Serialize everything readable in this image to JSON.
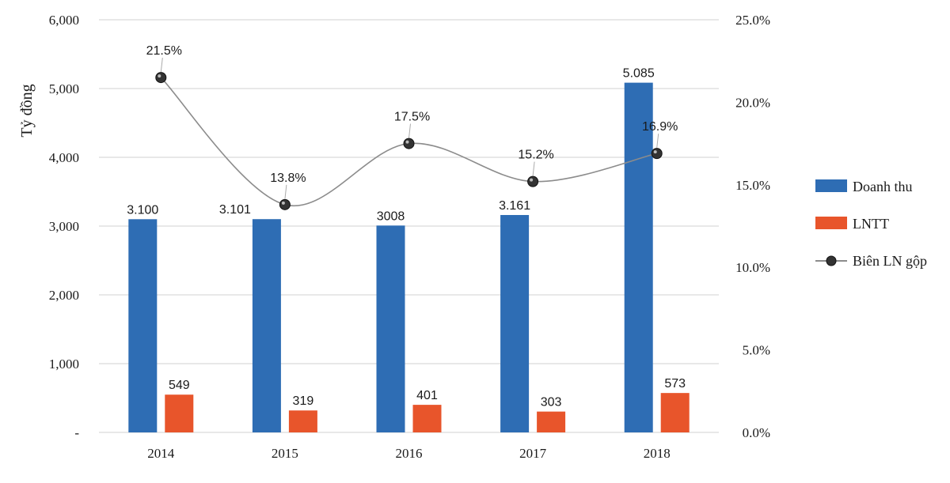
{
  "chart_data": {
    "type": "bar",
    "categories": [
      "2014",
      "2015",
      "2016",
      "2017",
      "2018"
    ],
    "ylabel": "Tỷ đồng",
    "ylim": [
      0,
      6000
    ],
    "y_ticks": [
      "-",
      "1,000",
      "2,000",
      "3,000",
      "4,000",
      "5,000",
      "6,000"
    ],
    "y2lim": [
      0,
      25
    ],
    "y2_ticks": [
      "0.0%",
      "5.0%",
      "10.0%",
      "15.0%",
      "20.0%",
      "25.0%"
    ],
    "grid": true,
    "legend_position": "right",
    "series": [
      {
        "name": "Doanh thu",
        "type": "bar",
        "axis": "left",
        "color": "#2e6db4",
        "values": [
          3100,
          3101,
          3008,
          3161,
          5085
        ],
        "labels": [
          "3.100",
          "3.101",
          "3008",
          "3.161",
          "5.085"
        ]
      },
      {
        "name": "LNTT",
        "type": "bar",
        "axis": "left",
        "color": "#e8552b",
        "values": [
          549,
          319,
          401,
          303,
          573
        ],
        "labels": [
          "549",
          "319",
          "401",
          "303",
          "573"
        ]
      },
      {
        "name": "Biên LN gộp",
        "type": "line",
        "axis": "right",
        "color": "#8c8c8c",
        "marker_color": "#333333",
        "values": [
          21.5,
          13.8,
          17.5,
          15.2,
          16.9
        ],
        "labels": [
          "21.5%",
          "13.8%",
          "17.5%",
          "15.2%",
          "16.9%"
        ]
      }
    ]
  }
}
